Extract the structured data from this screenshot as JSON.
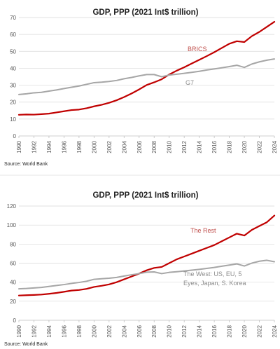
{
  "charts": [
    {
      "source": "Source: World Bank",
      "chart_data": {
        "type": "line",
        "title": "GDP, PPP (2021 Int$ trillion)",
        "xlabel": "",
        "ylabel": "",
        "xlim": [
          1990,
          2024
        ],
        "ylim": [
          0,
          70
        ],
        "yticks": [
          0,
          10,
          20,
          30,
          40,
          50,
          60,
          70
        ],
        "xticks": [
          "1990",
          "1992",
          "1994",
          "1996",
          "1998",
          "2000",
          "2002",
          "2004",
          "2006",
          "2008",
          "2010",
          "2012",
          "2014",
          "2016",
          "2018",
          "2020",
          "2022",
          "2024"
        ],
        "grid": true,
        "legend": "inline labels",
        "series": [
          {
            "name": "BRICS",
            "color": "#c00000",
            "label_color": "#c0504d",
            "x": [
              1990,
              1991,
              1992,
              1993,
              1994,
              1995,
              1996,
              1997,
              1998,
              1999,
              2000,
              2001,
              2002,
              2003,
              2004,
              2005,
              2006,
              2007,
              2008,
              2009,
              2010,
              2011,
              2012,
              2013,
              2014,
              2015,
              2016,
              2017,
              2018,
              2019,
              2020,
              2021,
              2022,
              2023,
              2024
            ],
            "values": [
              12.5,
              12.7,
              12.6,
              12.9,
              13.2,
              13.9,
              14.6,
              15.3,
              15.6,
              16.4,
              17.5,
              18.4,
              19.6,
              21.1,
              23.0,
              25.1,
              27.5,
              30.1,
              31.7,
              33.5,
              36.3,
              38.6,
              40.6,
              42.8,
              45.0,
              47.2,
              49.5,
              52.0,
              54.5,
              56.0,
              55.5,
              59.0,
              61.5,
              64.5,
              67.5
            ]
          },
          {
            "name": "G7",
            "color": "#a6a6a6",
            "label_color": "#8c8c8c",
            "x": [
              1990,
              1991,
              1992,
              1993,
              1994,
              1995,
              1996,
              1997,
              1998,
              1999,
              2000,
              2001,
              2002,
              2003,
              2004,
              2005,
              2006,
              2007,
              2008,
              2009,
              2010,
              2011,
              2012,
              2013,
              2014,
              2015,
              2016,
              2017,
              2018,
              2019,
              2020,
              2021,
              2022,
              2023,
              2024
            ],
            "values": [
              24.5,
              24.9,
              25.5,
              25.8,
              26.5,
              27.2,
              28.0,
              28.8,
              29.5,
              30.5,
              31.5,
              31.8,
              32.2,
              32.8,
              33.8,
              34.6,
              35.5,
              36.3,
              36.3,
              35.0,
              36.0,
              36.5,
              37.0,
              37.6,
              38.2,
              39.0,
              39.6,
              40.3,
              41.0,
              41.8,
              40.5,
              42.5,
              43.8,
              44.8,
              45.5
            ]
          }
        ]
      }
    },
    {
      "source": "Source: World Bank",
      "chart_data": {
        "type": "line",
        "title": "GDP, PPP (2021 Int$ trillion)",
        "xlabel": "",
        "ylabel": "",
        "xlim": [
          1990,
          2024
        ],
        "ylim": [
          0,
          120
        ],
        "yticks": [
          0,
          20,
          40,
          60,
          80,
          100,
          120
        ],
        "xticks": [
          "1990",
          "1992",
          "1994",
          "1996",
          "1998",
          "2000",
          "2002",
          "2004",
          "2006",
          "2008",
          "2010",
          "2012",
          "2014",
          "2016",
          "2018",
          "2020",
          "2022",
          "2024"
        ],
        "grid": true,
        "legend": "inline labels",
        "series": [
          {
            "name": "The Rest",
            "color": "#c00000",
            "label_color": "#c0504d",
            "x": [
              1990,
              1991,
              1992,
              1993,
              1994,
              1995,
              1996,
              1997,
              1998,
              1999,
              2000,
              2001,
              2002,
              2003,
              2004,
              2005,
              2006,
              2007,
              2008,
              2009,
              2010,
              2011,
              2012,
              2013,
              2014,
              2015,
              2016,
              2017,
              2018,
              2019,
              2020,
              2021,
              2022,
              2023,
              2024
            ],
            "values": [
              26.0,
              26.3,
              26.6,
              27.0,
              27.8,
              28.7,
              29.9,
              31.2,
              31.8,
              33.0,
              35.0,
              36.2,
              37.7,
              40.0,
              43.0,
              46.0,
              49.0,
              52.5,
              55.0,
              56.0,
              60.0,
              64.0,
              67.0,
              70.0,
              73.0,
              76.0,
              79.0,
              83.0,
              87.0,
              91.0,
              89.0,
              95.0,
              99.0,
              103.0,
              110.0
            ]
          },
          {
            "name": "The West: US, EU, 5 Eyes, Japan, S. Korea",
            "label_lines": [
              "The West: US, EU, 5",
              "Eyes, Japan, S. Korea"
            ],
            "color": "#a6a6a6",
            "label_color": "#8c8c8c",
            "x": [
              1990,
              1991,
              1992,
              1993,
              1994,
              1995,
              1996,
              1997,
              1998,
              1999,
              2000,
              2001,
              2002,
              2003,
              2004,
              2005,
              2006,
              2007,
              2008,
              2009,
              2010,
              2011,
              2012,
              2013,
              2014,
              2015,
              2016,
              2017,
              2018,
              2019,
              2020,
              2021,
              2022,
              2023,
              2024
            ],
            "values": [
              33.0,
              33.4,
              34.0,
              34.5,
              35.5,
              36.5,
              37.5,
              38.7,
              39.7,
              41.0,
              43.0,
              43.6,
              44.2,
              45.0,
              46.5,
              47.8,
              49.0,
              50.5,
              50.8,
              49.0,
              50.3,
              51.0,
              51.8,
              52.6,
              53.5,
              54.5,
              55.5,
              56.8,
              58.0,
              59.2,
              57.0,
              60.0,
              62.0,
              63.0,
              61.5
            ]
          }
        ]
      }
    }
  ]
}
